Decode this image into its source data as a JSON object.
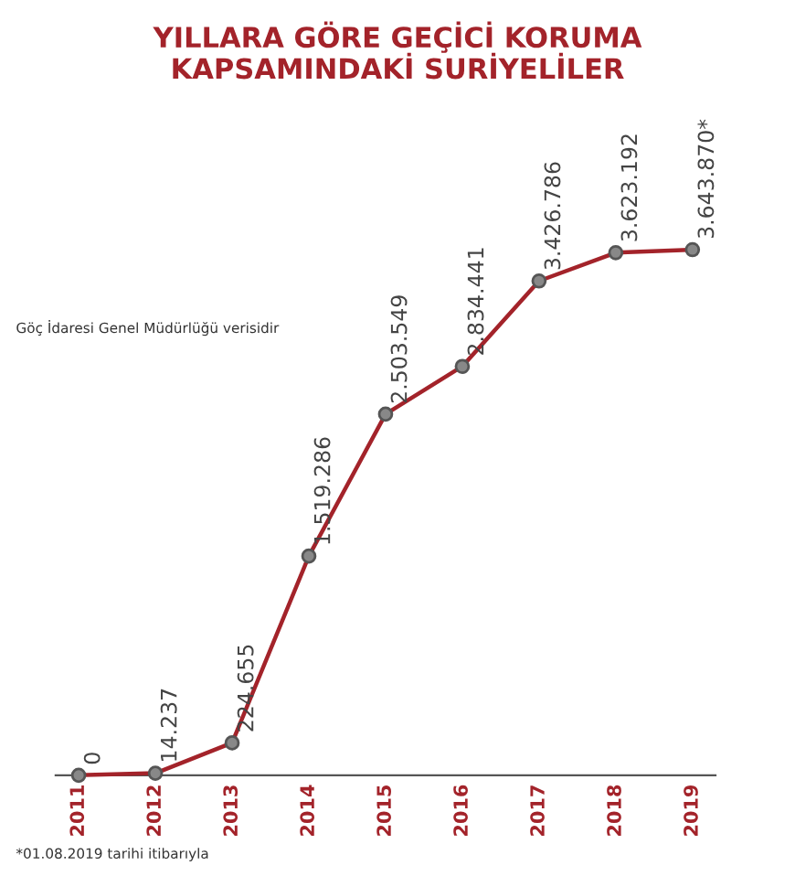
{
  "chart_data": {
    "type": "line",
    "title": "YILLARA GÖRE GEÇİCİ KORUMA\nKAPSAMINDAKİ SURİYELİLER",
    "categories": [
      "2011",
      "2012",
      "2013",
      "2014",
      "2015",
      "2016",
      "2017",
      "2018",
      "2019"
    ],
    "series": [
      {
        "color": "#a3232a",
        "values": [
          0,
          14237,
          224655,
          1519286,
          2503549,
          2834441,
          3426786,
          3623192,
          3643870
        ],
        "value_labels": [
          "0",
          "14.237",
          "224.655",
          "1.519.286",
          "2.503.549",
          "2.834.441",
          "3.426.786",
          "3.623.192",
          "3.643.870*"
        ]
      }
    ],
    "tick_labels": "x",
    "marker": "circle",
    "grid": false,
    "legend": false,
    "annotations": [
      "Göç İdaresi Genel Müdürlüğü verisidir",
      "*01.08.2019 tarihi itibarıyla"
    ]
  }
}
